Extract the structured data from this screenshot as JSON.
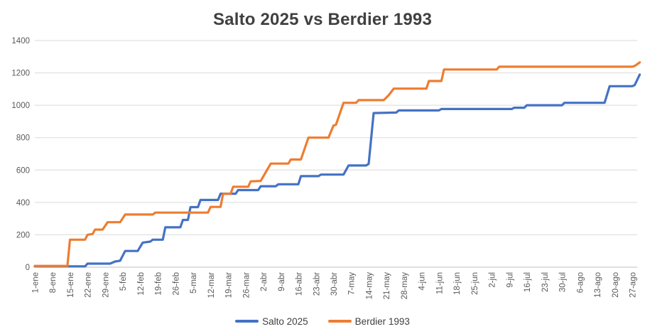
{
  "chart_data": {
    "type": "line",
    "title": "Salto 2025 vs Berdier 1993",
    "xlabel": "",
    "ylabel": "",
    "y_ticks": [
      0,
      200,
      400,
      600,
      800,
      1000,
      1200,
      1400
    ],
    "ylim": [
      0,
      1400
    ],
    "x_tick_interval_days": 7,
    "x_tick_labels": [
      "1-ene",
      "8-ene",
      "15-ene",
      "22-ene",
      "29-ene",
      "5-feb",
      "12-feb",
      "19-feb",
      "26-feb",
      "5-mar",
      "12-mar",
      "19-mar",
      "26-mar",
      "2-abr",
      "9-abr",
      "16-abr",
      "23-abr",
      "30-abr",
      "7-may",
      "14-may",
      "21-may",
      "28-may",
      "4-jun",
      "11-jun",
      "18-jun",
      "25-jun",
      "2-jul",
      "9-jul",
      "16-jul",
      "23-jul",
      "30-jul",
      "6-ago",
      "13-ago",
      "20-ago",
      "27-ago"
    ],
    "grid": "horizontal",
    "legend_position": "bottom-center",
    "colors": {
      "grid": "#D9D9D9",
      "axis": "#BFBFBF",
      "tick_label": "#595959",
      "title": "#404040"
    },
    "series": [
      {
        "name": "Salto 2025",
        "color": "#4472C4",
        "points": [
          [
            0,
            5
          ],
          [
            20,
            5
          ],
          [
            21,
            22
          ],
          [
            30,
            22
          ],
          [
            32,
            35
          ],
          [
            34,
            40
          ],
          [
            36,
            100
          ],
          [
            41,
            100
          ],
          [
            43,
            152
          ],
          [
            46,
            158
          ],
          [
            47,
            170
          ],
          [
            51,
            170
          ],
          [
            52,
            246
          ],
          [
            58,
            246
          ],
          [
            59,
            292
          ],
          [
            61,
            292
          ],
          [
            62,
            371
          ],
          [
            65,
            371
          ],
          [
            66,
            415
          ],
          [
            73,
            415
          ],
          [
            74,
            454
          ],
          [
            80,
            454
          ],
          [
            81,
            476
          ],
          [
            89,
            476
          ],
          [
            90,
            500
          ],
          [
            96,
            500
          ],
          [
            97,
            512
          ],
          [
            105,
            512
          ],
          [
            106,
            562
          ],
          [
            113,
            562
          ],
          [
            114,
            572
          ],
          [
            123,
            572
          ],
          [
            125,
            628
          ],
          [
            132,
            628
          ],
          [
            133,
            638
          ],
          [
            135,
            952
          ],
          [
            144,
            955
          ],
          [
            145,
            968
          ],
          [
            161,
            968
          ],
          [
            162,
            977
          ],
          [
            190,
            977
          ],
          [
            191,
            985
          ],
          [
            195,
            985
          ],
          [
            196,
            1000
          ],
          [
            210,
            1000
          ],
          [
            211,
            1015
          ],
          [
            227,
            1015
          ],
          [
            229,
            1118
          ],
          [
            238,
            1118
          ],
          [
            239,
            1125
          ],
          [
            241,
            1190
          ]
        ]
      },
      {
        "name": "Berdier 1993",
        "color": "#ED7D31",
        "points": [
          [
            0,
            8
          ],
          [
            13,
            8
          ],
          [
            14,
            170
          ],
          [
            20,
            170
          ],
          [
            21,
            200
          ],
          [
            23,
            205
          ],
          [
            24,
            232
          ],
          [
            27,
            232
          ],
          [
            29,
            278
          ],
          [
            34,
            278
          ],
          [
            36,
            325
          ],
          [
            47,
            325
          ],
          [
            48,
            337
          ],
          [
            69,
            337
          ],
          [
            70,
            372
          ],
          [
            74,
            372
          ],
          [
            75,
            453
          ],
          [
            78,
            453
          ],
          [
            79,
            497
          ],
          [
            85,
            497
          ],
          [
            86,
            530
          ],
          [
            90,
            533
          ],
          [
            94,
            640
          ],
          [
            101,
            640
          ],
          [
            102,
            665
          ],
          [
            106,
            665
          ],
          [
            109,
            800
          ],
          [
            117,
            800
          ],
          [
            119,
            875
          ],
          [
            120,
            880
          ],
          [
            123,
            1015
          ],
          [
            128,
            1015
          ],
          [
            129,
            1032
          ],
          [
            139,
            1032
          ],
          [
            141,
            1062
          ],
          [
            143,
            1103
          ],
          [
            156,
            1103
          ],
          [
            157,
            1150
          ],
          [
            162,
            1150
          ],
          [
            163,
            1221
          ],
          [
            184,
            1221
          ],
          [
            185,
            1238
          ],
          [
            238,
            1238
          ],
          [
            239,
            1243
          ],
          [
            241,
            1265
          ]
        ]
      }
    ]
  }
}
